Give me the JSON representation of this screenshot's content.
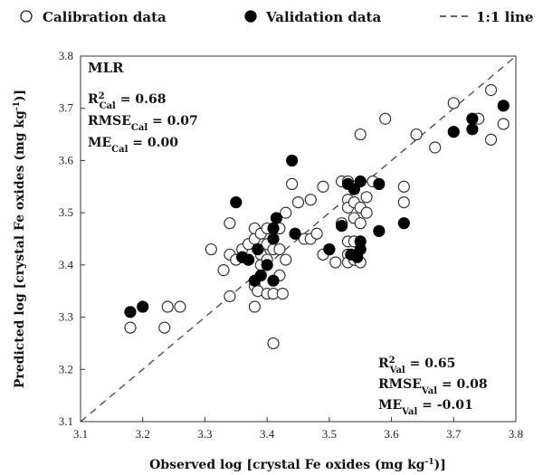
{
  "legend": {
    "calibration": "Calibration data",
    "validation": "Validation data",
    "line": "1:1 line"
  },
  "annotations": {
    "model": "MLR",
    "cal": {
      "r2": {
        "base": "R",
        "sup": "2",
        "sub": "Cal",
        "value": " = 0.68"
      },
      "rmse": {
        "base": "RMSE",
        "sub": "Cal",
        "value": " = 0.07"
      },
      "me": {
        "base": "ME",
        "sub": "Cal",
        "value": " = 0.00"
      }
    },
    "val": {
      "r2": {
        "base": "R",
        "sup": "2",
        "sub": "Val",
        "value": " = 0.65"
      },
      "rmse": {
        "base": "RMSE",
        "sub": "Val",
        "value": " = 0.08"
      },
      "me": {
        "base": "ME",
        "sub": "Val",
        "value": " = -0.01"
      }
    }
  },
  "axes": {
    "xlabel": {
      "pre": "Observed log [crystal Fe oxides (mg kg",
      "sup": "-1",
      "post": ")]"
    },
    "ylabel": {
      "pre": "Predicted log [crystal Fe oxides (mg kg",
      "sup": "-1",
      "post": ")]"
    }
  },
  "chart_data": {
    "type": "scatter",
    "xlim": [
      3.1,
      3.8
    ],
    "ylim": [
      3.1,
      3.8
    ],
    "xticks": [
      "3.1",
      "3.2",
      "3.3",
      "3.4",
      "3.5",
      "3.6",
      "3.7",
      "3.8"
    ],
    "yticks": [
      "3.1",
      "3.2",
      "3.3",
      "3.4",
      "3.5",
      "3.6",
      "3.7",
      "3.8"
    ],
    "grid": false,
    "legend_position": "top",
    "reference_line": {
      "name": "1:1 line",
      "style": "dashed",
      "points": [
        [
          3.1,
          3.1
        ],
        [
          3.8,
          3.8
        ]
      ]
    },
    "series": [
      {
        "name": "Calibration data",
        "marker": "open-circle",
        "points": [
          [
            3.18,
            3.28
          ],
          [
            3.24,
            3.32
          ],
          [
            3.26,
            3.32
          ],
          [
            3.235,
            3.28
          ],
          [
            3.31,
            3.43
          ],
          [
            3.33,
            3.39
          ],
          [
            3.34,
            3.34
          ],
          [
            3.34,
            3.42
          ],
          [
            3.34,
            3.48
          ],
          [
            3.35,
            3.41
          ],
          [
            3.36,
            3.43
          ],
          [
            3.37,
            3.44
          ],
          [
            3.37,
            3.41
          ],
          [
            3.38,
            3.45
          ],
          [
            3.38,
            3.47
          ],
          [
            3.38,
            3.36
          ],
          [
            3.38,
            3.32
          ],
          [
            3.385,
            3.35
          ],
          [
            3.39,
            3.46
          ],
          [
            3.39,
            3.42
          ],
          [
            3.39,
            3.4
          ],
          [
            3.4,
            3.47
          ],
          [
            3.4,
            3.44
          ],
          [
            3.4,
            3.41
          ],
          [
            3.4,
            3.345
          ],
          [
            3.41,
            3.43
          ],
          [
            3.41,
            3.345
          ],
          [
            3.41,
            3.25
          ],
          [
            3.42,
            3.47
          ],
          [
            3.42,
            3.43
          ],
          [
            3.42,
            3.38
          ],
          [
            3.425,
            3.345
          ],
          [
            3.43,
            3.5
          ],
          [
            3.43,
            3.41
          ],
          [
            3.44,
            3.555
          ],
          [
            3.45,
            3.52
          ],
          [
            3.46,
            3.45
          ],
          [
            3.47,
            3.525
          ],
          [
            3.47,
            3.45
          ],
          [
            3.48,
            3.46
          ],
          [
            3.49,
            3.55
          ],
          [
            3.49,
            3.42
          ],
          [
            3.5,
            3.43
          ],
          [
            3.51,
            3.405
          ],
          [
            3.52,
            3.56
          ],
          [
            3.52,
            3.48
          ],
          [
            3.53,
            3.56
          ],
          [
            3.53,
            3.525
          ],
          [
            3.53,
            3.51
          ],
          [
            3.53,
            3.445
          ],
          [
            3.53,
            3.42
          ],
          [
            3.53,
            3.405
          ],
          [
            3.54,
            3.55
          ],
          [
            3.54,
            3.52
          ],
          [
            3.54,
            3.49
          ],
          [
            3.54,
            3.445
          ],
          [
            3.54,
            3.41
          ],
          [
            3.55,
            3.65
          ],
          [
            3.55,
            3.51
          ],
          [
            3.55,
            3.48
          ],
          [
            3.55,
            3.405
          ],
          [
            3.56,
            3.53
          ],
          [
            3.56,
            3.5
          ],
          [
            3.57,
            3.56
          ],
          [
            3.59,
            3.68
          ],
          [
            3.62,
            3.55
          ],
          [
            3.62,
            3.52
          ],
          [
            3.64,
            3.65
          ],
          [
            3.67,
            3.625
          ],
          [
            3.7,
            3.71
          ],
          [
            3.74,
            3.68
          ],
          [
            3.76,
            3.735
          ],
          [
            3.76,
            3.64
          ],
          [
            3.78,
            3.67
          ]
        ]
      },
      {
        "name": "Validation data",
        "marker": "filled-circle",
        "points": [
          [
            3.18,
            3.31
          ],
          [
            3.2,
            3.32
          ],
          [
            3.35,
            3.52
          ],
          [
            3.36,
            3.415
          ],
          [
            3.37,
            3.41
          ],
          [
            3.38,
            3.37
          ],
          [
            3.385,
            3.43
          ],
          [
            3.39,
            3.38
          ],
          [
            3.4,
            3.4
          ],
          [
            3.41,
            3.47
          ],
          [
            3.41,
            3.45
          ],
          [
            3.41,
            3.37
          ],
          [
            3.415,
            3.49
          ],
          [
            3.44,
            3.6
          ],
          [
            3.445,
            3.46
          ],
          [
            3.5,
            3.43
          ],
          [
            3.52,
            3.475
          ],
          [
            3.53,
            3.555
          ],
          [
            3.535,
            3.42
          ],
          [
            3.54,
            3.545
          ],
          [
            3.545,
            3.415
          ],
          [
            3.55,
            3.445
          ],
          [
            3.55,
            3.43
          ],
          [
            3.55,
            3.56
          ],
          [
            3.58,
            3.465
          ],
          [
            3.58,
            3.555
          ],
          [
            3.62,
            3.48
          ],
          [
            3.7,
            3.655
          ],
          [
            3.73,
            3.68
          ],
          [
            3.73,
            3.66
          ],
          [
            3.78,
            3.705
          ]
        ]
      }
    ]
  }
}
